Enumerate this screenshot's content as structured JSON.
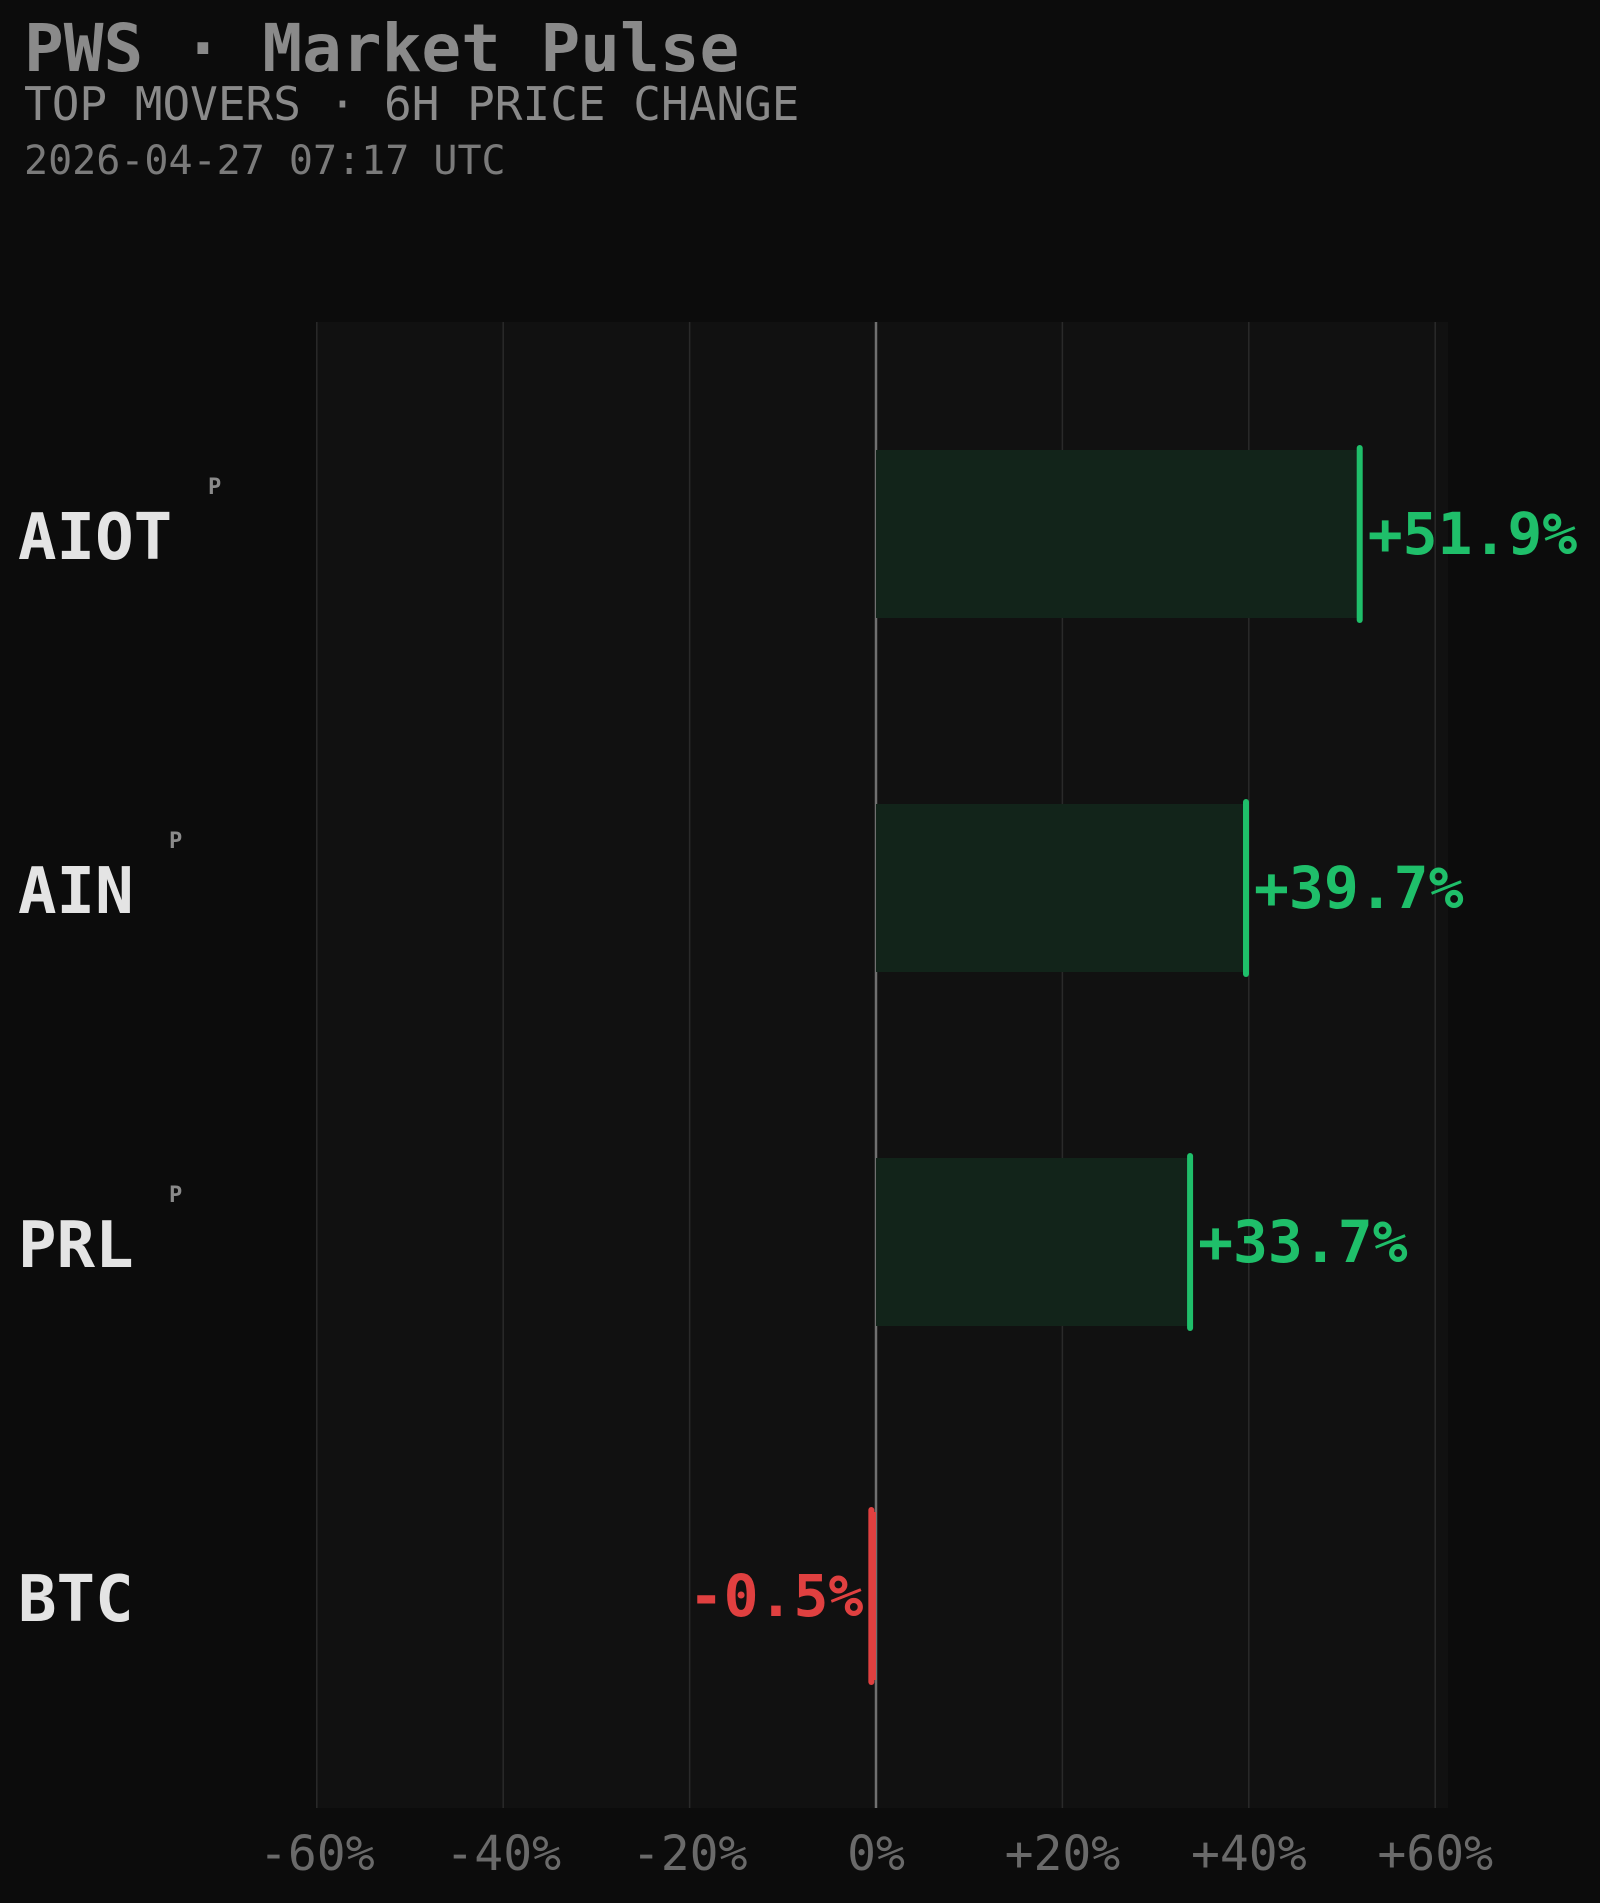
{
  "header": {
    "title": "PWS · Market Pulse",
    "subtitle": "TOP MOVERS · 6H PRICE CHANGE",
    "timestamp": "2026-04-27 07:17 UTC"
  },
  "colors": {
    "background": "#0c0c0c",
    "plot_background": "#111111",
    "positive": "#1fbf6a",
    "positive_fill": "#12241a",
    "negative": "#e04040",
    "grid": "#2a2a2a",
    "zero_line": "#707070",
    "label_text": "#e4e4e4",
    "tag_text": "#8a8a8a",
    "tick_text": "#6a6a6a"
  },
  "chart_data": {
    "type": "bar",
    "orientation": "horizontal",
    "categories": [
      "AIOT",
      "AIN",
      "PRL",
      "BTC"
    ],
    "tags": [
      "P",
      "P",
      "P",
      ""
    ],
    "values": [
      51.9,
      39.7,
      33.7,
      -0.5
    ],
    "value_labels": [
      "+51.9%",
      "+39.7%",
      "+33.7%",
      "-0.5%"
    ],
    "xlim": [
      -60,
      60
    ],
    "xticks": [
      -60,
      -40,
      -20,
      0,
      20,
      40,
      60
    ],
    "xtick_labels": [
      "-60%",
      "-40%",
      "-20%",
      "0%",
      "+20%",
      "+40%",
      "+60%"
    ],
    "title": "",
    "xlabel": "",
    "ylabel": "",
    "grid": true,
    "legend": "none"
  }
}
